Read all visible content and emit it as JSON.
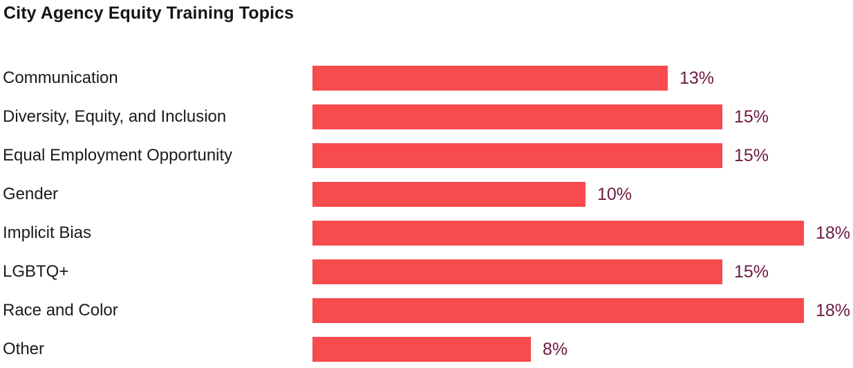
{
  "chart_data": {
    "type": "bar",
    "orientation": "horizontal",
    "title": "City Agency Equity Training Topics",
    "categories": [
      "Communication",
      "Diversity, Equity, and Inclusion",
      "Equal Employment Opportunity",
      "Gender",
      "Implicit Bias",
      "LGBTQ+",
      "Race and Color",
      "Other"
    ],
    "values": [
      13,
      15,
      15,
      10,
      18,
      15,
      18,
      8
    ],
    "value_labels": [
      "13%",
      "15%",
      "15%",
      "10%",
      "18%",
      "15%",
      "18%",
      "8%"
    ],
    "unit": "%",
    "xlim": [
      0,
      18
    ],
    "grid": false,
    "legend": "none",
    "axes_visible": false,
    "colors": {
      "bar": "#F74B4E",
      "value_label": "#6E1A40",
      "category_label": "#1a1a1a",
      "title": "#161616",
      "background": "#ffffff"
    }
  }
}
